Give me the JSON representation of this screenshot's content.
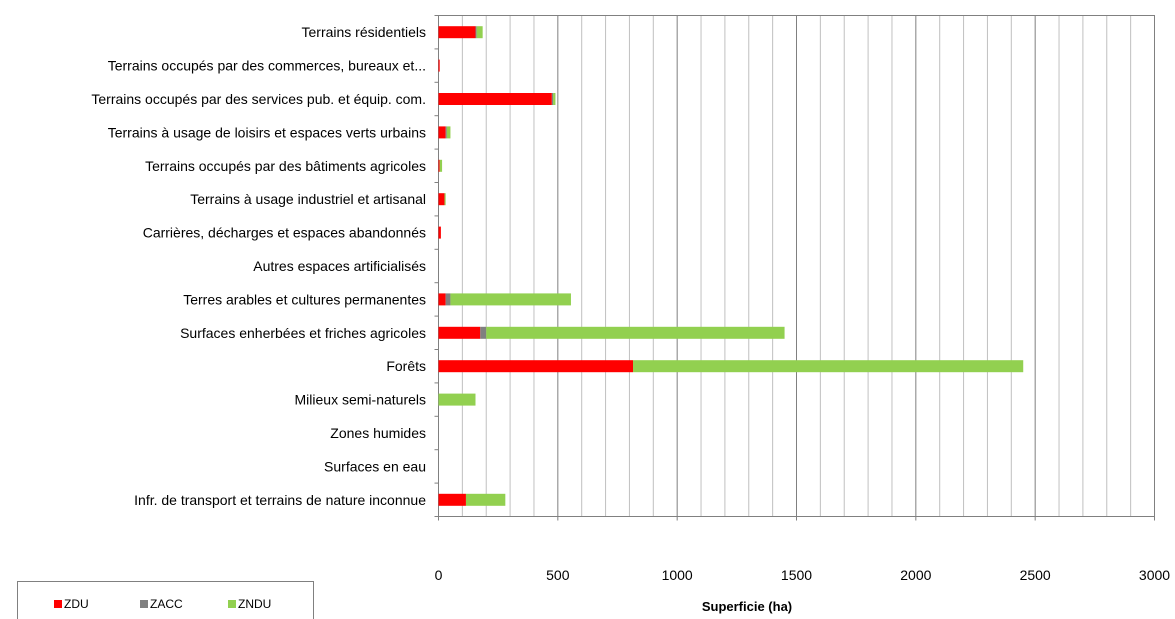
{
  "chart_data": {
    "type": "bar",
    "orientation": "horizontal",
    "stacked": true,
    "categories": [
      "Terrains résidentiels",
      "Terrains occupés par des commerces, bureaux et...",
      "Terrains occupés par des services pub. et équip. com.",
      "Terrains à usage de loisirs et espaces verts urbains",
      "Terrains occupés par des bâtiments agricoles",
      "Terrains à usage industriel et artisanal",
      "Carrières, décharges et espaces abandonnés",
      "Autres espaces artificialisés",
      "Terres arables et cultures permanentes",
      "Surfaces enherbées et friches agricoles",
      "Forêts",
      "Milieux semi-naturels",
      "Zones humides",
      "Surfaces en eau",
      "Infr. de transport et terrains de nature inconnue"
    ],
    "series": [
      {
        "name": "ZDU",
        "color": "#ff0000",
        "values": [
          155,
          5,
          475,
          30,
          5,
          25,
          10,
          0,
          30,
          175,
          815,
          0,
          0,
          0,
          115
        ]
      },
      {
        "name": "ZACC",
        "color": "#808080",
        "values": [
          5,
          0,
          5,
          5,
          0,
          0,
          0,
          0,
          20,
          25,
          0,
          0,
          0,
          0,
          0
        ]
      },
      {
        "name": "ZNDU",
        "color": "#92d050",
        "values": [
          25,
          0,
          10,
          15,
          10,
          5,
          0,
          0,
          505,
          1250,
          1635,
          155,
          0,
          0,
          165
        ]
      }
    ],
    "xlabel": "Superficie (ha)",
    "ylabel": "",
    "xlim": [
      0,
      3000
    ],
    "xticks": [
      "0",
      "500",
      "1000",
      "1500",
      "2000",
      "2500",
      "3000"
    ],
    "grid": "vertical",
    "legend": "bottom-left"
  }
}
